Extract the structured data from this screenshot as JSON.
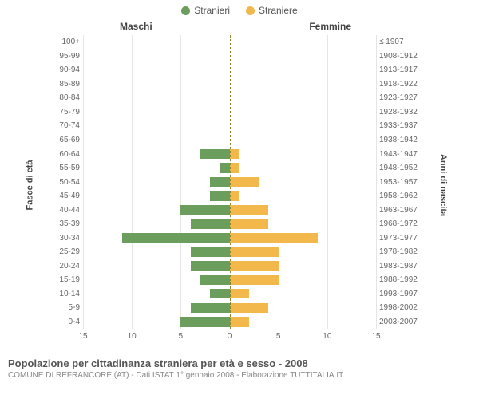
{
  "legend": {
    "male": "Stranieri",
    "female": "Straniere"
  },
  "columns": {
    "left": "Maschi",
    "right": "Femmine"
  },
  "axis_labels": {
    "left": "Fasce di età",
    "right": "Anni di nascita"
  },
  "chart": {
    "type": "population-pyramid",
    "xmax": 15,
    "xticks": [
      15,
      10,
      5,
      0,
      5,
      10,
      15
    ],
    "male_color": "#6b9e5c",
    "female_color": "#f2b84b",
    "grid_color": "#e5e5e5",
    "background_color": "#ffffff",
    "center_line_color": "#888833",
    "bar_height_ratio": 0.7,
    "label_fontsize": 10,
    "title_fontsize": 13,
    "rows": [
      {
        "age": "100+",
        "birth": "≤ 1907",
        "m": 0,
        "f": 0
      },
      {
        "age": "95-99",
        "birth": "1908-1912",
        "m": 0,
        "f": 0
      },
      {
        "age": "90-94",
        "birth": "1913-1917",
        "m": 0,
        "f": 0
      },
      {
        "age": "85-89",
        "birth": "1918-1922",
        "m": 0,
        "f": 0
      },
      {
        "age": "80-84",
        "birth": "1923-1927",
        "m": 0,
        "f": 0
      },
      {
        "age": "75-79",
        "birth": "1928-1932",
        "m": 0,
        "f": 0
      },
      {
        "age": "70-74",
        "birth": "1933-1937",
        "m": 0,
        "f": 0
      },
      {
        "age": "65-69",
        "birth": "1938-1942",
        "m": 0,
        "f": 0
      },
      {
        "age": "60-64",
        "birth": "1943-1947",
        "m": 3,
        "f": 1
      },
      {
        "age": "55-59",
        "birth": "1948-1952",
        "m": 1,
        "f": 1
      },
      {
        "age": "50-54",
        "birth": "1953-1957",
        "m": 2,
        "f": 3
      },
      {
        "age": "45-49",
        "birth": "1958-1962",
        "m": 2,
        "f": 1
      },
      {
        "age": "40-44",
        "birth": "1963-1967",
        "m": 5,
        "f": 4
      },
      {
        "age": "35-39",
        "birth": "1968-1972",
        "m": 4,
        "f": 4
      },
      {
        "age": "30-34",
        "birth": "1973-1977",
        "m": 11,
        "f": 9
      },
      {
        "age": "25-29",
        "birth": "1978-1982",
        "m": 4,
        "f": 5
      },
      {
        "age": "20-24",
        "birth": "1983-1987",
        "m": 4,
        "f": 5
      },
      {
        "age": "15-19",
        "birth": "1988-1992",
        "m": 3,
        "f": 5
      },
      {
        "age": "10-14",
        "birth": "1993-1997",
        "m": 2,
        "f": 2
      },
      {
        "age": "5-9",
        "birth": "1998-2002",
        "m": 4,
        "f": 4
      },
      {
        "age": "0-4",
        "birth": "2003-2007",
        "m": 5,
        "f": 2
      }
    ]
  },
  "footer": {
    "title": "Popolazione per cittadinanza straniera per età e sesso - 2008",
    "subtitle": "COMUNE DI REFRANCORE (AT) - Dati ISTAT 1° gennaio 2008 - Elaborazione TUTTITALIA.IT"
  }
}
